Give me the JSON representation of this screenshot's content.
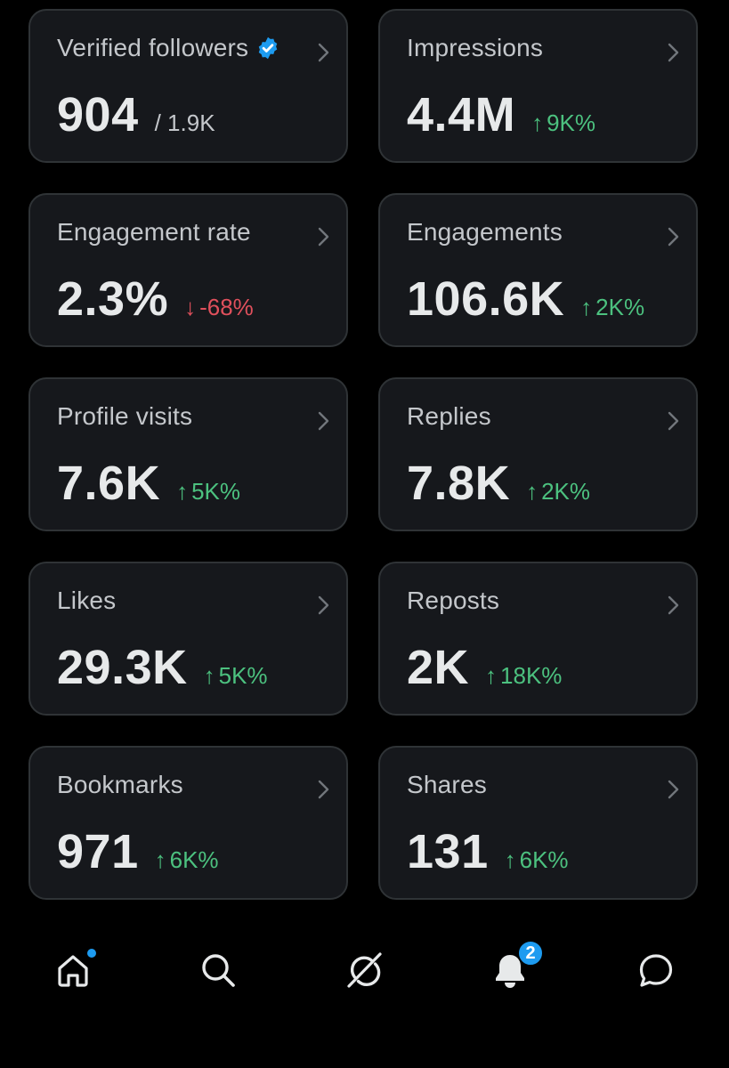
{
  "colors": {
    "card_bg": "#16181c",
    "card_border": "#2f3336",
    "up": "#4cc17f",
    "down": "#e0505c",
    "accent": "#1d9bf0",
    "text_primary": "#e7e9ea",
    "text_secondary": "#c4c7cb"
  },
  "cards": [
    {
      "label": "Verified followers",
      "value": "904",
      "sub": "/ 1.9K",
      "icon": "verified-badge-icon"
    },
    {
      "label": "Impressions",
      "value": "4.4M",
      "arrow": "↑",
      "change": "9K%",
      "direction": "up"
    },
    {
      "label": "Engagement rate",
      "value": "2.3%",
      "arrow": "↓",
      "change": "-68%",
      "direction": "down"
    },
    {
      "label": "Engagements",
      "value": "106.6K",
      "arrow": "↑",
      "change": "2K%",
      "direction": "up"
    },
    {
      "label": "Profile visits",
      "value": "7.6K",
      "arrow": "↑",
      "change": "5K%",
      "direction": "up"
    },
    {
      "label": "Replies",
      "value": "7.8K",
      "arrow": "↑",
      "change": "2K%",
      "direction": "up"
    },
    {
      "label": "Likes",
      "value": "29.3K",
      "arrow": "↑",
      "change": "5K%",
      "direction": "up"
    },
    {
      "label": "Reposts",
      "value": "2K",
      "arrow": "↑",
      "change": "18K%",
      "direction": "up"
    },
    {
      "label": "Bookmarks",
      "value": "971",
      "arrow": "↑",
      "change": "6K%",
      "direction": "up"
    },
    {
      "label": "Shares",
      "value": "131",
      "arrow": "↑",
      "change": "6K%",
      "direction": "up"
    }
  ],
  "tabbar": {
    "items": [
      {
        "name": "home",
        "icon": "home-icon",
        "has_dot": true
      },
      {
        "name": "search",
        "icon": "search-icon"
      },
      {
        "name": "grok",
        "icon": "grok-icon"
      },
      {
        "name": "notifications",
        "icon": "bell-icon",
        "badge": "2"
      },
      {
        "name": "messages",
        "icon": "message-icon"
      }
    ]
  }
}
